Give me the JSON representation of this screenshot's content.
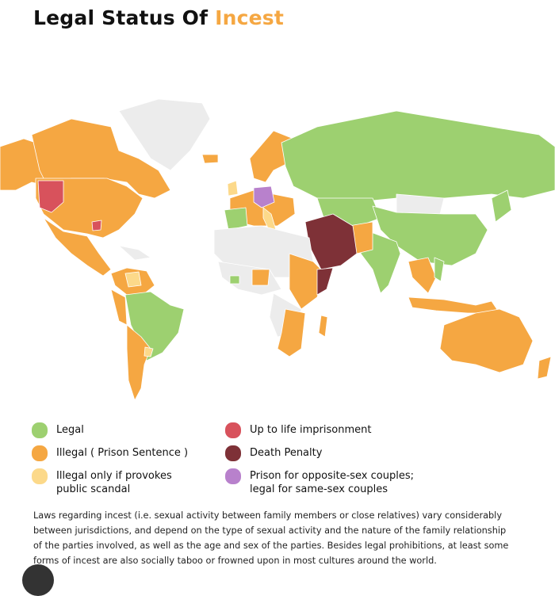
{
  "title": {
    "prefix": "Legal Status Of ",
    "accent": "Incest"
  },
  "colors": {
    "accent": "#f5a742",
    "no_data": "#ececec",
    "ocean": "#ffffff"
  },
  "legend": [
    {
      "label": "Legal",
      "color": "#9dd070"
    },
    {
      "label": "Illegal ( Prison Sentence )",
      "color": "#f5a742"
    },
    {
      "label": "Illegal only if provokes public scandal",
      "color": "#fcd98a"
    },
    {
      "label": "Up to life imprisonment",
      "color": "#d8525c"
    },
    {
      "label": "Death Penalty",
      "color": "#7e3137"
    },
    {
      "label": "Prison for opposite-sex couples; legal for same-sex couples",
      "color": "#b881cc"
    }
  ],
  "description": "Laws regarding incest (i.e. sexual activity between family members or close relatives) vary considerably between jurisdictions, and depend on the type of sexual activity and the nature of the family relationship of the parties involved, as well as the age and sex of the parties. Besides legal prohibitions, at least some forms of incest are also socially taboo or frowned upon in most cultures around the world."
}
